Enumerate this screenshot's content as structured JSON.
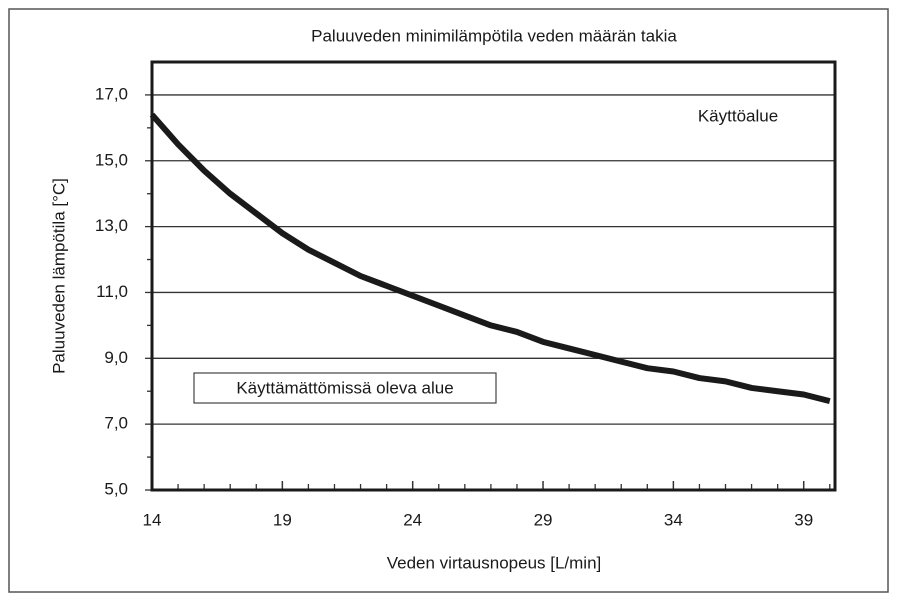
{
  "chart_data": {
    "type": "line",
    "title": "Paluuveden minimilämpötila veden määrän takia",
    "x_label": "Veden virtausnopeus [L/min]",
    "y_label": "Paluuveden lämpötila [°C]",
    "annotations": [
      "Käyttöalue",
      "Käyttämättömissä oleva alue"
    ],
    "x": [
      14,
      15,
      16,
      17,
      18,
      19,
      20,
      21,
      22,
      23,
      24,
      25,
      26,
      27,
      28,
      29,
      30,
      31,
      32,
      33,
      34,
      35,
      36,
      37,
      38,
      39,
      40
    ],
    "series": [
      {
        "color": "#1a1a1a",
        "values": [
          16.4,
          15.5,
          14.7,
          14.0,
          13.4,
          12.8,
          12.3,
          11.9,
          11.5,
          11.2,
          10.9,
          10.6,
          10.3,
          10.0,
          9.8,
          9.5,
          9.3,
          9.1,
          8.9,
          8.7,
          8.6,
          8.4,
          8.3,
          8.1,
          8.0,
          7.9,
          7.7
        ]
      }
    ],
    "xlim": [
      14,
      40.2
    ],
    "ylim": [
      5,
      18
    ],
    "xticks": [
      14,
      19,
      24,
      29,
      34,
      39
    ],
    "xminorticks": [
      15,
      16,
      17,
      18,
      20,
      21,
      22,
      23,
      25,
      26,
      27,
      28,
      30,
      31,
      32,
      33,
      35,
      36,
      37,
      38,
      40
    ],
    "yticks": [
      {
        "value": 5,
        "label": "5,0"
      },
      {
        "value": 7,
        "label": "7,0"
      },
      {
        "value": 9,
        "label": "9,0"
      },
      {
        "value": 11,
        "label": "11,0"
      },
      {
        "value": 13,
        "label": "13,0"
      },
      {
        "value": 15,
        "label": "15,0"
      },
      {
        "value": 17,
        "label": "17,0"
      }
    ],
    "yminorticks": [
      6,
      8,
      10,
      12,
      14,
      16
    ],
    "grid": true
  }
}
